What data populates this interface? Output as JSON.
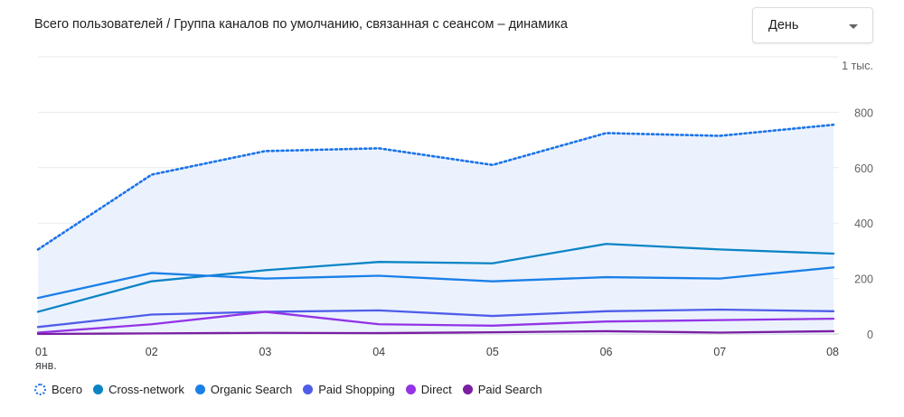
{
  "title": "Всего пользователей / Группа каналов по умолчанию, связанная с сеансом – динамика",
  "dropdown": {
    "value": "День",
    "icon": "chevron-down-icon"
  },
  "chart_data": {
    "type": "line",
    "x_ticks": [
      "01",
      "02",
      "03",
      "04",
      "05",
      "06",
      "07",
      "08"
    ],
    "x_sublabel": "янв.",
    "y_ticks": [
      {
        "value": 0,
        "label": "0"
      },
      {
        "value": 200,
        "label": "200"
      },
      {
        "value": 400,
        "label": "400"
      },
      {
        "value": 600,
        "label": "600"
      },
      {
        "value": 800,
        "label": "800"
      },
      {
        "value": 1000,
        "label": "1 тыс."
      }
    ],
    "ylim": [
      0,
      1000
    ],
    "grid": true,
    "legend_position": "bottom",
    "series": [
      {
        "name": "Всего",
        "color": "#1a73e8",
        "style": "dotted",
        "fill": true,
        "values": [
          305,
          575,
          660,
          670,
          610,
          725,
          715,
          755
        ]
      },
      {
        "name": "Cross-network",
        "color": "#0b84c4",
        "style": "solid",
        "values": [
          80,
          190,
          230,
          260,
          255,
          325,
          305,
          290
        ]
      },
      {
        "name": "Organic Search",
        "color": "#1a7fe8",
        "style": "solid",
        "values": [
          130,
          220,
          200,
          210,
          190,
          205,
          200,
          240
        ]
      },
      {
        "name": "Paid Shopping",
        "color": "#4f5de8",
        "style": "solid",
        "values": [
          25,
          70,
          80,
          85,
          65,
          82,
          88,
          82
        ]
      },
      {
        "name": "Direct",
        "color": "#9334e6",
        "style": "solid",
        "values": [
          5,
          35,
          80,
          35,
          30,
          45,
          50,
          55
        ]
      },
      {
        "name": "Paid Search",
        "color": "#7b1fa2",
        "style": "solid",
        "values": [
          0,
          2,
          4,
          3,
          6,
          10,
          5,
          10
        ]
      }
    ]
  }
}
